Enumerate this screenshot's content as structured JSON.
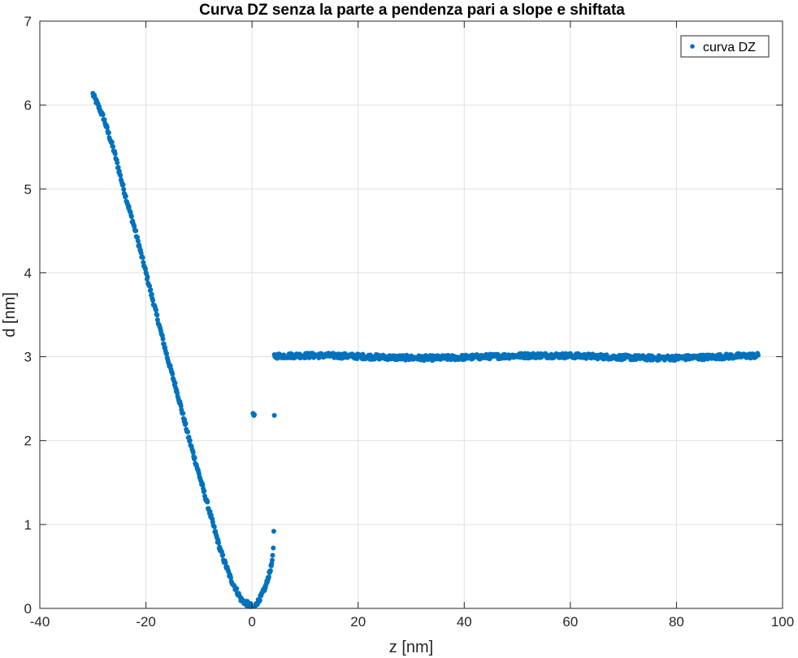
{
  "chart_data": {
    "type": "scatter",
    "title": "Curva DZ senza la parte a pendenza pari a slope e shiftata",
    "xlabel": "z [nm]",
    "ylabel": "d [nm]",
    "xlim": [
      -40,
      100
    ],
    "ylim": [
      0,
      7
    ],
    "xticks": [
      -40,
      -20,
      0,
      20,
      40,
      60,
      80,
      100
    ],
    "yticks": [
      0,
      1,
      2,
      3,
      4,
      5,
      6,
      7
    ],
    "xtick_labels": [
      "-40",
      "-20",
      "0",
      "20",
      "40",
      "60",
      "80",
      "100"
    ],
    "ytick_labels": [
      "0",
      "1",
      "2",
      "3",
      "4",
      "5",
      "6",
      "7"
    ],
    "grid": true,
    "legend_position": "top-right",
    "series": [
      {
        "name": "curva DZ",
        "color": "#0072BD",
        "marker": "filled-circle",
        "segments": [
          {
            "description_range": [
              -30,
              0
            ],
            "shape": "approximately linear decrease",
            "points": [
              [
                -30,
                6.13
              ],
              [
                -28,
                5.85
              ],
              [
                -26,
                5.45
              ],
              [
                -24,
                4.95
              ],
              [
                -22,
                4.5
              ],
              [
                -20,
                4.0
              ],
              [
                -18,
                3.5
              ],
              [
                -16,
                3.0
              ],
              [
                -14,
                2.55
              ],
              [
                -12,
                2.05
              ],
              [
                -10,
                1.6
              ],
              [
                -8,
                1.15
              ],
              [
                -6,
                0.7
              ],
              [
                -4,
                0.35
              ],
              [
                -2,
                0.1
              ],
              [
                0,
                0.02
              ]
            ]
          },
          {
            "description_range": [
              0,
              4.2
            ],
            "shape": "sharp rise",
            "points": [
              [
                0.5,
                0.02
              ],
              [
                1.5,
                0.12
              ],
              [
                2.5,
                0.25
              ],
              [
                3.2,
                0.4
              ],
              [
                3.8,
                0.55
              ],
              [
                4.0,
                0.72
              ],
              [
                4.1,
                0.92
              ],
              [
                4.2,
                2.3
              ]
            ]
          },
          {
            "description_range": [
              4.2,
              95.5
            ],
            "shape": "plateau",
            "level": 3.0,
            "noise": 0.03
          }
        ]
      }
    ]
  }
}
